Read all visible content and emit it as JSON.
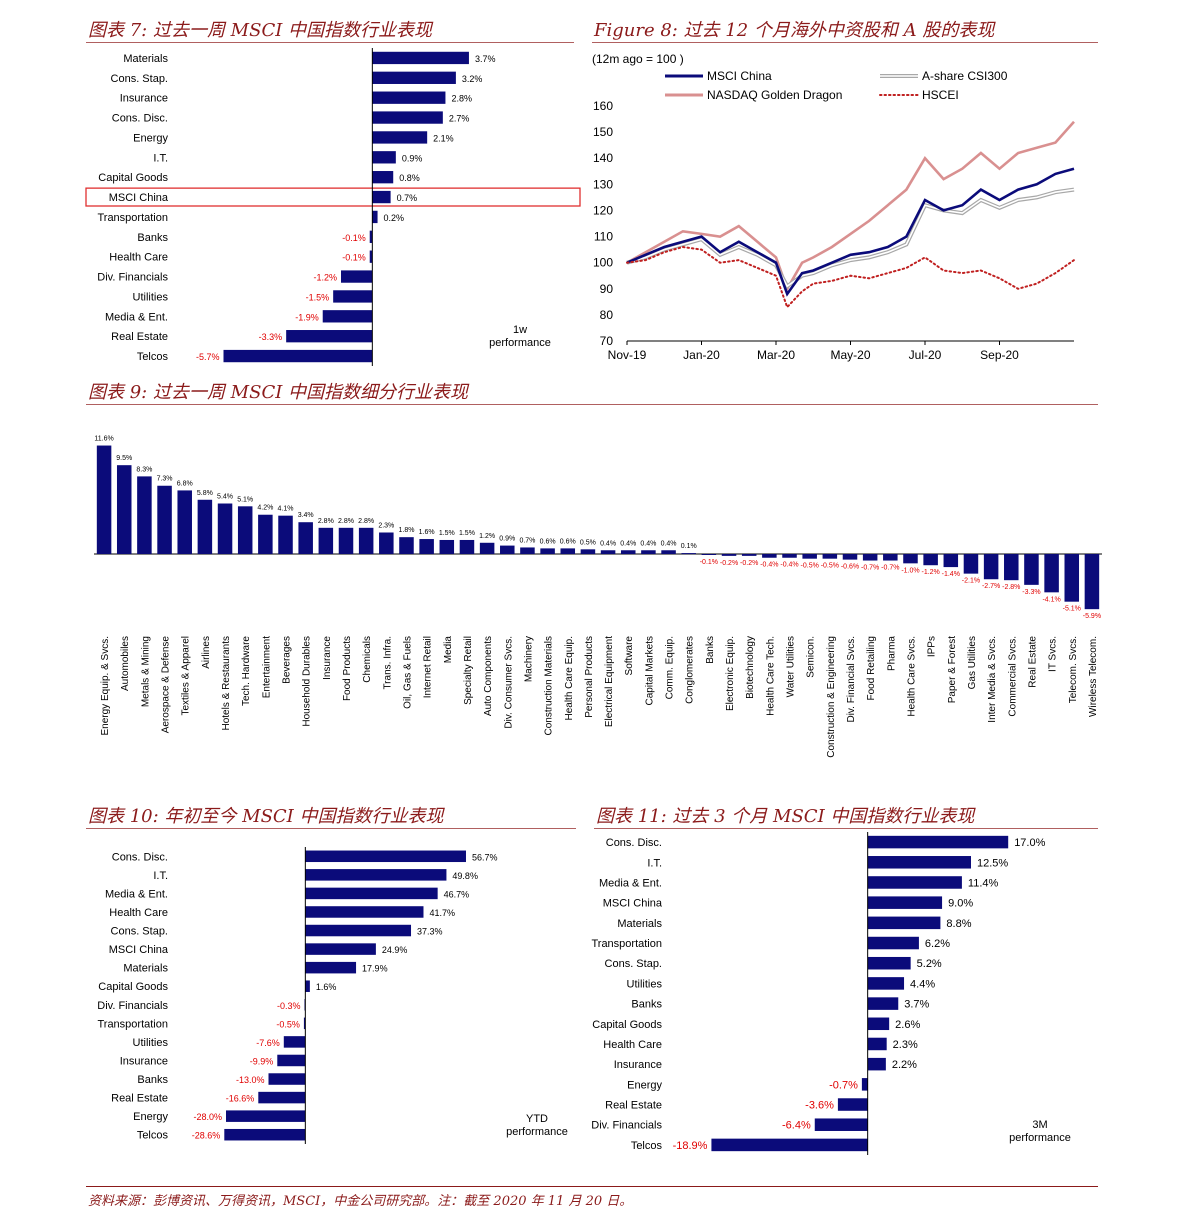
{
  "titles": {
    "fig7": "图表 7:  过去一周 MSCI  中国指数行业表现",
    "fig8": "Figure 8:  过去 12 个月海外中资股和 A 股的表现",
    "fig9": "图表 9:  过去一周 MSCI  中国指数细分行业表现",
    "fig10": "图表 10:  年初至今 MSCI  中国指数行业表现",
    "fig11": "图表 11:  过去 3 个月 MSCI  中国指数行业表现"
  },
  "footer": "资料来源：彭博资讯、万得资讯，MSCI，中金公司研究部。注：截至 2020 年 11 月 20 日。",
  "colors": {
    "bar": "#0b0b7a",
    "neg_label": "#e00000",
    "title": "#8b1a1a",
    "highlight": "#e03030"
  },
  "chart_data": [
    {
      "id": "fig7",
      "type": "bar",
      "orientation": "horizontal",
      "note": "1w performance",
      "highlight": "MSCI China",
      "categories": [
        "Materials",
        "Cons. Stap.",
        "Insurance",
        "Cons. Disc.",
        "Energy",
        "I.T.",
        "Capital Goods",
        "MSCI China",
        "Transportation",
        "Banks",
        "Health Care",
        "Div. Financials",
        "Utilities",
        "Media & Ent.",
        "Real Estate",
        "Telcos"
      ],
      "values": [
        3.7,
        3.2,
        2.8,
        2.7,
        2.1,
        0.9,
        0.8,
        0.7,
        0.2,
        -0.1,
        -0.1,
        -1.2,
        -1.5,
        -1.9,
        -3.3,
        -5.7
      ],
      "xlim": [
        -6.6,
        4.2
      ]
    },
    {
      "id": "fig8",
      "type": "line",
      "axis_note": "(12m ago  = 100 )",
      "x_ticks": [
        "Nov-19",
        "Jan-20",
        "Mar-20",
        "May-20",
        "Jul-20",
        "Sep-20"
      ],
      "x_tick_months": [
        0,
        2,
        4,
        6,
        8,
        10
      ],
      "ylim": [
        70,
        160
      ],
      "y_ticks": [
        70,
        80,
        90,
        100,
        110,
        120,
        130,
        140,
        150,
        160
      ],
      "series": [
        {
          "name": "MSCI China",
          "style": "solid-thick",
          "color": "#0b0b7a",
          "month": [
            0,
            0.5,
            1,
            1.5,
            2,
            2.5,
            3,
            3.5,
            4,
            4.3,
            4.7,
            5,
            5.5,
            6,
            6.5,
            7,
            7.5,
            8,
            8.5,
            9,
            9.5,
            10,
            10.5,
            11,
            11.5,
            12
          ],
          "values": [
            100,
            103,
            106,
            108,
            110,
            104,
            108,
            104,
            100,
            88,
            96,
            97,
            100,
            103,
            104,
            106,
            110,
            124,
            120,
            122,
            128,
            124,
            128,
            130,
            134,
            136
          ]
        },
        {
          "name": "A-share CSI300",
          "style": "double-grey",
          "color": "#b0b0b0",
          "month": [
            0,
            0.5,
            1,
            1.5,
            2,
            2.5,
            3,
            3.5,
            4,
            4.3,
            4.7,
            5,
            5.5,
            6,
            6.5,
            7,
            7.5,
            8,
            8.5,
            9,
            9.5,
            10,
            10.5,
            11,
            11.5,
            12
          ],
          "values": [
            100,
            102,
            105,
            107,
            109,
            103,
            106,
            103,
            99,
            91,
            95,
            96,
            99,
            101,
            102,
            104,
            107,
            122,
            120,
            119,
            124,
            121,
            124,
            125,
            127,
            128
          ]
        },
        {
          "name": "NASDAQ Golden Dragon",
          "style": "solid-pink",
          "color": "#d99090",
          "month": [
            0,
            0.5,
            1,
            1.5,
            2,
            2.5,
            3,
            3.5,
            4,
            4.3,
            4.7,
            5,
            5.5,
            6,
            6.5,
            7,
            7.5,
            8,
            8.5,
            9,
            9.5,
            10,
            10.5,
            11,
            11.5,
            12
          ],
          "values": [
            100,
            104,
            108,
            112,
            111,
            110,
            114,
            108,
            102,
            90,
            100,
            102,
            106,
            111,
            116,
            122,
            128,
            140,
            132,
            136,
            142,
            136,
            142,
            144,
            146,
            154
          ]
        },
        {
          "name": "HSCEI",
          "style": "dotted-red",
          "color": "#c02020",
          "month": [
            0,
            0.5,
            1,
            1.5,
            2,
            2.5,
            3,
            3.5,
            4,
            4.3,
            4.7,
            5,
            5.5,
            6,
            6.5,
            7,
            7.5,
            8,
            8.5,
            9,
            9.5,
            10,
            10.5,
            11,
            11.5,
            12
          ],
          "values": [
            100,
            101,
            104,
            106,
            105,
            100,
            101,
            98,
            95,
            83,
            89,
            92,
            93,
            95,
            94,
            96,
            98,
            102,
            97,
            96,
            97,
            94,
            90,
            92,
            96,
            101
          ]
        }
      ]
    },
    {
      "id": "fig9",
      "type": "bar",
      "orientation": "vertical",
      "categories": [
        "Energy Equip. & Svcs.",
        "Automobiles",
        "Metals & Mining",
        "Aerospace & Defense",
        "Textiles & Apparel",
        "Airlines",
        "Hotels & Restaurants",
        "Tech. Hardware",
        "Entertainment",
        "Beverages",
        "Household Durables",
        "Insurance",
        "Food Products",
        "Chemicals",
        "Trans. Infra.",
        "Oil, Gas & Fuels",
        "Internet Retail",
        "Media",
        "Specialty Retail",
        "Auto Components",
        "Div. Consumer Svcs.",
        "Machinery",
        "Construction Materials",
        "Health Care Equip.",
        "Personal Products",
        "Electrical Equipment",
        "Software",
        "Capital Markets",
        "Comm. Equip.",
        "Conglomerates",
        "Banks",
        "Electronic Equip.",
        "Biotechnology",
        "Health Care Tech.",
        "Water Utilities",
        "Semicon.",
        "Construction & Engineering",
        "Div. Financial Svcs.",
        "Food Retailing",
        "Pharma",
        "Health Care Svcs.",
        "IPPs",
        "Paper & Forest",
        "Gas Utilities",
        "Inter Media & Svcs.",
        "Commercial Svcs.",
        "Real Estate",
        "IT Svcs.",
        "Telecom. Svcs.",
        "Wireless Telecom."
      ],
      "values": [
        11.6,
        9.5,
        8.3,
        7.3,
        6.8,
        5.8,
        5.4,
        5.1,
        4.2,
        4.1,
        3.4,
        2.8,
        2.8,
        2.8,
        2.3,
        1.8,
        1.6,
        1.5,
        1.5,
        1.2,
        0.9,
        0.7,
        0.6,
        0.6,
        0.5,
        0.4,
        0.4,
        0.4,
        0.4,
        0.1,
        -0.1,
        -0.2,
        -0.2,
        -0.4,
        -0.4,
        -0.5,
        -0.5,
        -0.6,
        -0.7,
        -0.7,
        -1.0,
        -1.2,
        -1.4,
        -2.1,
        -2.7,
        -2.8,
        -3.3,
        -4.1,
        -5.1,
        -5.9
      ]
    },
    {
      "id": "fig10",
      "type": "bar",
      "orientation": "horizontal",
      "note": "YTD performance",
      "categories": [
        "Cons. Disc.",
        "I.T.",
        "Media & Ent.",
        "Health Care",
        "Cons. Stap.",
        "MSCI China",
        "Materials",
        "Capital Goods",
        "Div. Financials",
        "Transportation",
        "Utilities",
        "Insurance",
        "Banks",
        "Real Estate",
        "Energy",
        "Telcos"
      ],
      "values": [
        56.7,
        49.8,
        46.7,
        41.7,
        37.3,
        24.9,
        17.9,
        1.6,
        -0.3,
        -0.5,
        -7.6,
        -9.9,
        -13.0,
        -16.6,
        -28.0,
        -28.6
      ],
      "xlim": [
        -40,
        80
      ]
    },
    {
      "id": "fig11",
      "type": "bar",
      "orientation": "horizontal",
      "note": "3M performance",
      "categories": [
        "Cons. Disc.",
        "I.T.",
        "Media & Ent.",
        "MSCI China",
        "Materials",
        "Transportation",
        "Cons. Stap.",
        "Utilities",
        "Banks",
        "Capital Goods",
        "Health Care",
        "Insurance",
        "Energy",
        "Real Estate",
        "Div. Financials",
        "Telcos"
      ],
      "values": [
        17.0,
        12.5,
        11.4,
        9.0,
        8.8,
        6.2,
        5.2,
        4.4,
        3.7,
        2.6,
        2.3,
        2.2,
        -0.7,
        -3.6,
        -6.4,
        -18.9
      ],
      "xlim": [
        -25,
        20
      ]
    }
  ]
}
